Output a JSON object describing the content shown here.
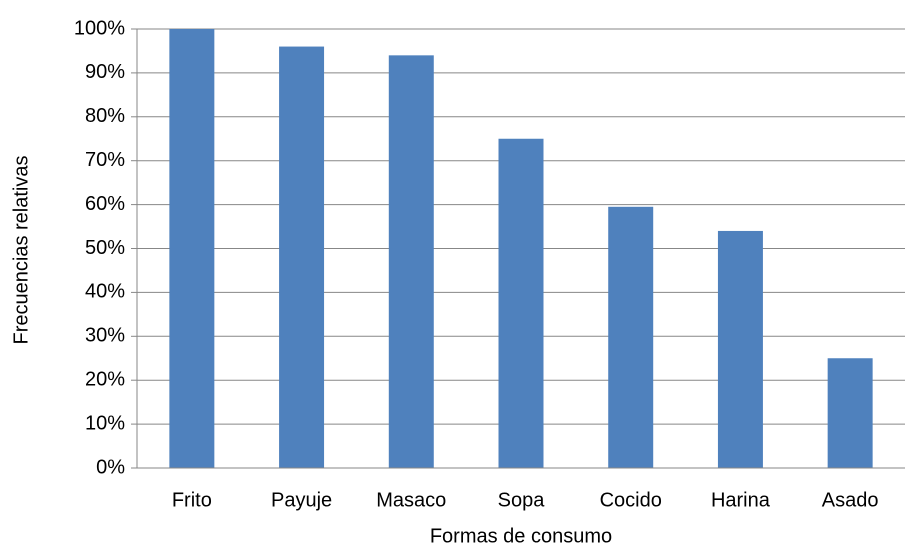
{
  "chart_data": {
    "type": "bar",
    "x_label": "Formas de consumo",
    "y_label": "Frecuencias relativas",
    "categories": [
      "Frito",
      "Payuje",
      "Masaco",
      "Sopa",
      "Cocido",
      "Harina",
      "Asado"
    ],
    "values": [
      100,
      96,
      94,
      75,
      59.5,
      54,
      25
    ],
    "color": "#4f81bd",
    "ylim": [
      0,
      100
    ],
    "yticks": [
      {
        "value": 0,
        "label": "0%"
      },
      {
        "value": 10,
        "label": "10%"
      },
      {
        "value": 20,
        "label": "20%"
      },
      {
        "value": 30,
        "label": "30%"
      },
      {
        "value": 40,
        "label": "40%"
      },
      {
        "value": 50,
        "label": "50%"
      },
      {
        "value": 60,
        "label": "60%"
      },
      {
        "value": 70,
        "label": "70%"
      },
      {
        "value": 80,
        "label": "80%"
      },
      {
        "value": 90,
        "label": "90%"
      },
      {
        "value": 100,
        "label": "100%"
      }
    ],
    "grid": true
  }
}
